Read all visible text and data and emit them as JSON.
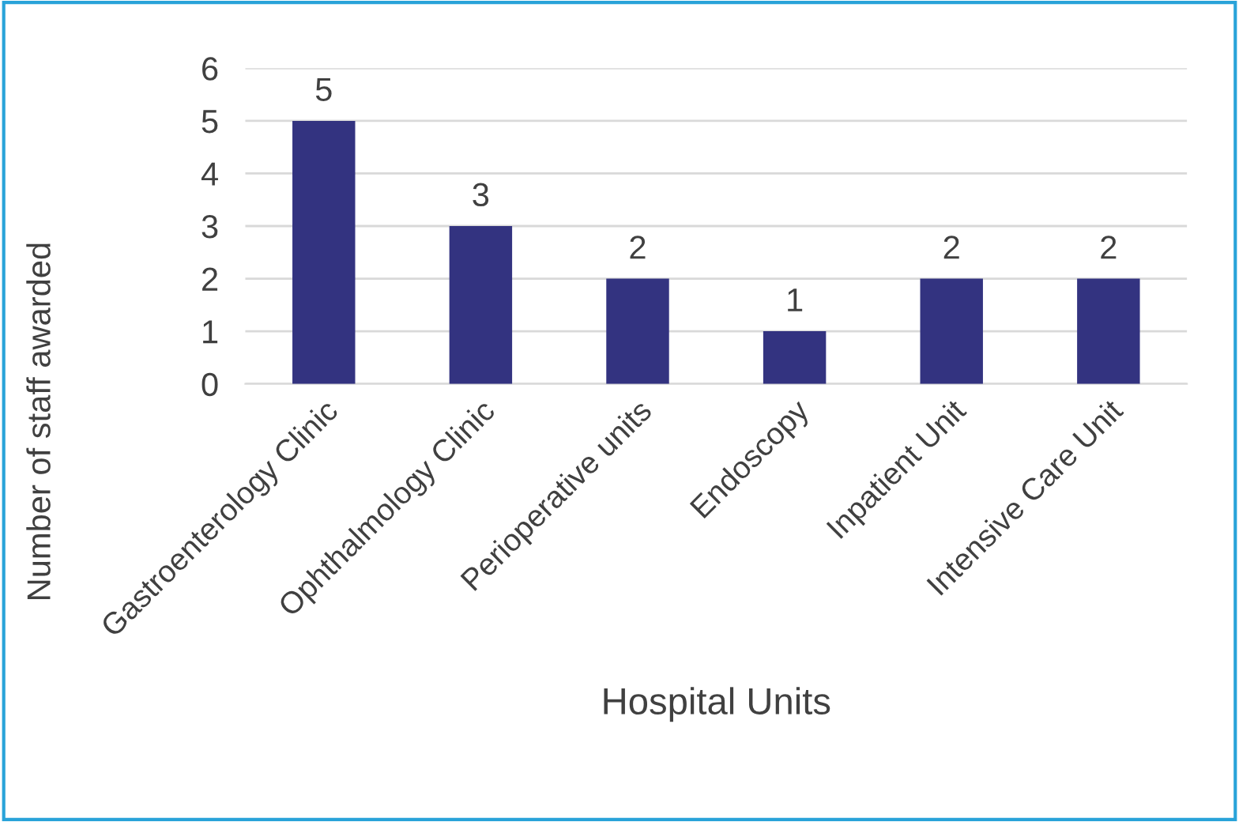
{
  "chart_data": {
    "type": "bar",
    "xlabel": "Hospital Units",
    "ylabel": "Number of staff awarded",
    "categories": [
      "Gastroenterology Clinic",
      "Ophthalmology Clinic",
      "Perioperative units",
      "Endoscopy",
      "Inpatient Unit",
      "Intensive Care Unit"
    ],
    "values": [
      5,
      3,
      2,
      1,
      2,
      2
    ],
    "color": "#333380",
    "ylim": [
      0,
      6
    ],
    "yticks": [
      0,
      1,
      2,
      3,
      4,
      5,
      6
    ],
    "grid": "y",
    "data_labels": true
  }
}
